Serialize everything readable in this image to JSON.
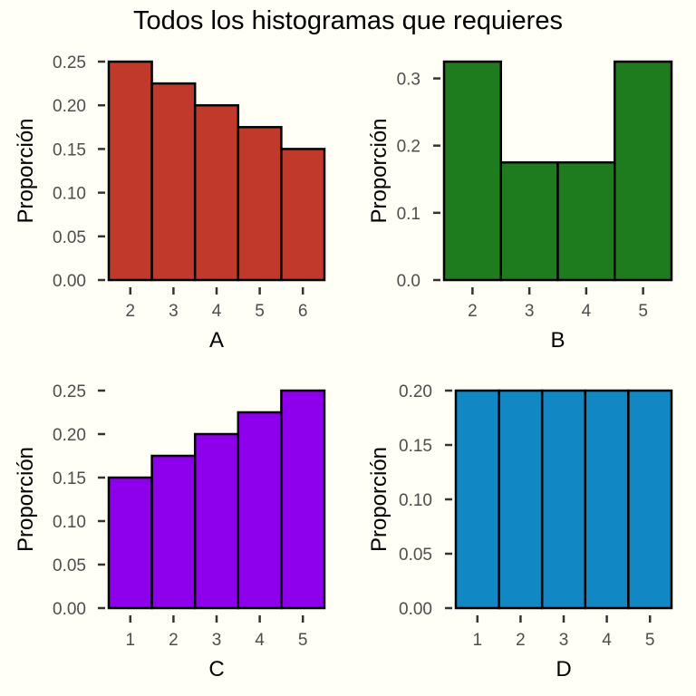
{
  "title": "Todos los histogramas que requieres",
  "chart_data": [
    {
      "type": "bar",
      "panel": "A",
      "xlabel": "A",
      "ylabel": "Proporción",
      "categories": [
        "2",
        "3",
        "4",
        "5",
        "6"
      ],
      "values": [
        0.25,
        0.225,
        0.2,
        0.175,
        0.15
      ],
      "ylim": [
        0,
        0.25
      ],
      "yticks": [
        "0.00",
        "0.05",
        "0.10",
        "0.15",
        "0.20",
        "0.25"
      ],
      "color": "#c0392b",
      "grid": false
    },
    {
      "type": "bar",
      "panel": "B",
      "xlabel": "B",
      "ylabel": "Proporción",
      "categories": [
        "2",
        "3",
        "4",
        "5"
      ],
      "values": [
        0.325,
        0.175,
        0.175,
        0.325
      ],
      "ylim": [
        0,
        0.325
      ],
      "yticks": [
        "0.0",
        "0.1",
        "0.2",
        "0.3"
      ],
      "color": "#1e7b1e",
      "grid": false
    },
    {
      "type": "bar",
      "panel": "C",
      "xlabel": "C",
      "ylabel": "Proporción",
      "categories": [
        "1",
        "2",
        "3",
        "4",
        "5"
      ],
      "values": [
        0.15,
        0.175,
        0.2,
        0.225,
        0.25
      ],
      "ylim": [
        0,
        0.25
      ],
      "yticks": [
        "0.00",
        "0.05",
        "0.10",
        "0.15",
        "0.20",
        "0.25"
      ],
      "color": "#8e00ec",
      "grid": false
    },
    {
      "type": "bar",
      "panel": "D",
      "xlabel": "D",
      "ylabel": "Proporción",
      "categories": [
        "1",
        "2",
        "3",
        "4",
        "5"
      ],
      "values": [
        0.2,
        0.2,
        0.2,
        0.2,
        0.2
      ],
      "ylim": [
        0,
        0.2
      ],
      "yticks": [
        "0.00",
        "0.05",
        "0.10",
        "0.15",
        "0.20"
      ],
      "color": "#1187c4",
      "grid": false
    }
  ]
}
